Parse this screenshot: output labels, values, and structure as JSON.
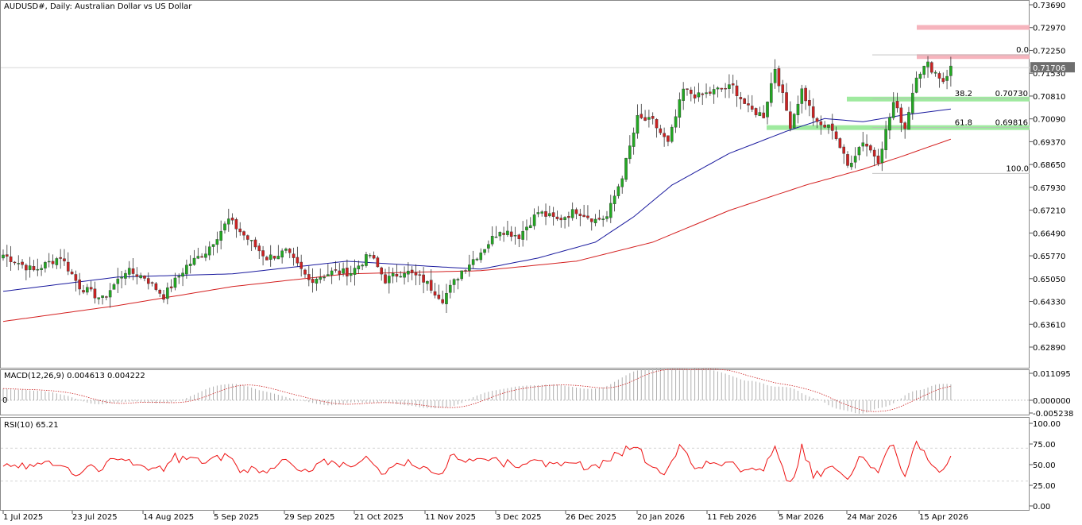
{
  "chart_data": {
    "type": "candlestick",
    "symbol": "AUDUSD#",
    "timeframe": "Daily",
    "description": "Australian Dollar vs US Dollar",
    "title_text": "AUDUSD#, Daily:  Australian Dollar vs US Dollar",
    "current_price": "0.71706",
    "y_ticks": [
      "0.73690",
      "0.72970",
      "0.72250",
      "0.71530",
      "0.70810",
      "0.70090",
      "0.69370",
      "0.68650",
      "0.67930",
      "0.67210",
      "0.66490",
      "0.65770",
      "0.65050",
      "0.64330",
      "0.63610",
      "0.62890"
    ],
    "ylim": [
      0.6225,
      0.7387
    ],
    "x_labels": [
      "1 Jul 2025",
      "23 Jul 2025",
      "14 Aug 2025",
      "5 Sep 2025",
      "29 Sep 2025",
      "21 Oct 2025",
      "11 Nov 2025",
      "3 Dec 2025",
      "26 Dec 2025",
      "20 Jan 2026",
      "11 Feb 2026",
      "5 Mar 2026",
      "24 Mar 2026",
      "15 Apr 2026"
    ],
    "fibonacci": [
      {
        "level": "0.0",
        "price": "",
        "value": 0.7211
      },
      {
        "level": "38.2",
        "price": "0.70730",
        "value": 0.7073
      },
      {
        "level": "61.8",
        "price": "0.69816",
        "value": 0.69816
      },
      {
        "level": "100.0",
        "price": "",
        "value": 0.6837
      }
    ],
    "zones": [
      {
        "color": "#f4a7b1",
        "from": 0.729,
        "to": 0.7305
      },
      {
        "color": "#f4a7b1",
        "from": 0.7198,
        "to": 0.7213
      },
      {
        "color": "#8ee68e",
        "from": 0.7064,
        "to": 0.7079
      },
      {
        "color": "#8ee68e",
        "from": 0.6974,
        "to": 0.6989
      }
    ],
    "colors": {
      "bull": "#22a822",
      "bear": "#cc2222",
      "ma_fast": "#1a1a9e",
      "ma_slow": "#d42020",
      "macd_hist": "#b0b0b0",
      "macd_signal": "#cc2222",
      "rsi": "#ee1111"
    },
    "macd": {
      "label": "MACD(12,26,9) 0.004613 0.004222",
      "y_ticks": [
        "0.011095",
        "0.000000",
        "-0.005238"
      ],
      "ylim": [
        -0.006,
        0.012
      ],
      "zero_label": "0"
    },
    "rsi": {
      "label": "RSI(10) 65.21",
      "y_ticks": [
        "100.00",
        "75.00",
        "50.00",
        "25.00",
        "0.00"
      ],
      "ylim": [
        0,
        100
      ],
      "levels": [
        70,
        30
      ]
    },
    "anchors": [
      {
        "i": 0,
        "c": 0.658
      },
      {
        "i": 8,
        "c": 0.653
      },
      {
        "i": 15,
        "c": 0.6575
      },
      {
        "i": 20,
        "c": 0.648
      },
      {
        "i": 26,
        "c": 0.644
      },
      {
        "i": 32,
        "c": 0.653
      },
      {
        "i": 37,
        "c": 0.651
      },
      {
        "i": 42,
        "c": 0.645
      },
      {
        "i": 48,
        "c": 0.6545
      },
      {
        "i": 53,
        "c": 0.659
      },
      {
        "i": 59,
        "c": 0.669
      },
      {
        "i": 64,
        "c": 0.663
      },
      {
        "i": 69,
        "c": 0.657
      },
      {
        "i": 74,
        "c": 0.659
      },
      {
        "i": 80,
        "c": 0.65
      },
      {
        "i": 86,
        "c": 0.6525
      },
      {
        "i": 91,
        "c": 0.6525
      },
      {
        "i": 96,
        "c": 0.658
      },
      {
        "i": 100,
        "c": 0.65
      },
      {
        "i": 105,
        "c": 0.653
      },
      {
        "i": 110,
        "c": 0.65
      },
      {
        "i": 115,
        "c": 0.644
      },
      {
        "i": 120,
        "c": 0.653
      },
      {
        "i": 125,
        "c": 0.659
      },
      {
        "i": 130,
        "c": 0.666
      },
      {
        "i": 135,
        "c": 0.664
      },
      {
        "i": 140,
        "c": 0.6715
      },
      {
        "i": 145,
        "c": 0.669
      },
      {
        "i": 150,
        "c": 0.672
      },
      {
        "i": 155,
        "c": 0.669
      },
      {
        "i": 158,
        "c": 0.67
      },
      {
        "i": 162,
        "c": 0.683
      },
      {
        "i": 166,
        "c": 0.701
      },
      {
        "i": 170,
        "c": 0.7
      },
      {
        "i": 174,
        "c": 0.693
      },
      {
        "i": 178,
        "c": 0.71
      },
      {
        "i": 182,
        "c": 0.708
      },
      {
        "i": 187,
        "c": 0.71
      },
      {
        "i": 191,
        "c": 0.711
      },
      {
        "i": 195,
        "c": 0.704
      },
      {
        "i": 199,
        "c": 0.702
      },
      {
        "i": 202,
        "c": 0.717
      },
      {
        "i": 206,
        "c": 0.699
      },
      {
        "i": 209,
        "c": 0.71
      },
      {
        "i": 213,
        "c": 0.699
      },
      {
        "i": 217,
        "c": 0.698
      },
      {
        "i": 221,
        "c": 0.686
      },
      {
        "i": 225,
        "c": 0.694
      },
      {
        "i": 229,
        "c": 0.688
      },
      {
        "i": 233,
        "c": 0.706
      },
      {
        "i": 236,
        "c": 0.698
      },
      {
        "i": 239,
        "c": 0.715
      },
      {
        "i": 242,
        "c": 0.718
      },
      {
        "i": 246,
        "c": 0.713
      },
      {
        "i": 248,
        "c": 0.717
      }
    ],
    "ma_fast_curve": [
      {
        "i": 0,
        "v": 0.6465
      },
      {
        "i": 30,
        "v": 0.651
      },
      {
        "i": 60,
        "v": 0.652
      },
      {
        "i": 90,
        "v": 0.656
      },
      {
        "i": 110,
        "v": 0.6545
      },
      {
        "i": 125,
        "v": 0.6535
      },
      {
        "i": 140,
        "v": 0.657
      },
      {
        "i": 155,
        "v": 0.662
      },
      {
        "i": 165,
        "v": 0.67
      },
      {
        "i": 175,
        "v": 0.68
      },
      {
        "i": 190,
        "v": 0.69
      },
      {
        "i": 205,
        "v": 0.697
      },
      {
        "i": 215,
        "v": 0.701
      },
      {
        "i": 225,
        "v": 0.7
      },
      {
        "i": 235,
        "v": 0.702
      },
      {
        "i": 248,
        "v": 0.704
      }
    ],
    "ma_slow_curve": [
      {
        "i": 0,
        "v": 0.637
      },
      {
        "i": 30,
        "v": 0.642
      },
      {
        "i": 60,
        "v": 0.648
      },
      {
        "i": 90,
        "v": 0.652
      },
      {
        "i": 125,
        "v": 0.653
      },
      {
        "i": 150,
        "v": 0.656
      },
      {
        "i": 170,
        "v": 0.662
      },
      {
        "i": 190,
        "v": 0.672
      },
      {
        "i": 210,
        "v": 0.68
      },
      {
        "i": 225,
        "v": 0.685
      },
      {
        "i": 235,
        "v": 0.689
      },
      {
        "i": 248,
        "v": 0.6945
      }
    ]
  }
}
